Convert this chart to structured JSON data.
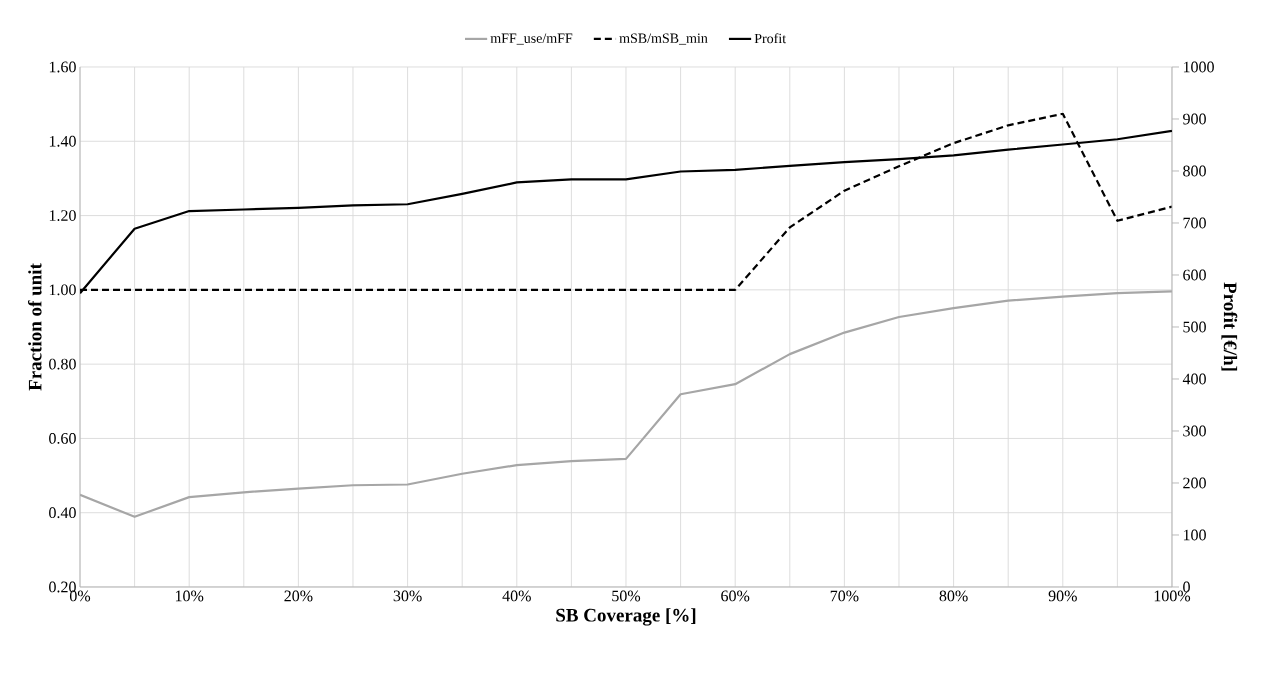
{
  "chart_data": {
    "type": "line",
    "categories": [
      "0%",
      null,
      "10%",
      null,
      "20%",
      null,
      "30%",
      null,
      "40%",
      null,
      "50%",
      null,
      "60%",
      null,
      "70%",
      null,
      "80%",
      null,
      "90%",
      null,
      "100%"
    ],
    "series": [
      {
        "name": "mFF_use/mFF",
        "color": "#a6a6a6",
        "line_style": "solid",
        "values": [
          0.448,
          0.389,
          0.442,
          0.455,
          0.465,
          0.474,
          0.476,
          0.505,
          0.528,
          0.539,
          0.545,
          0.719,
          0.746,
          0.827,
          0.885,
          0.927,
          0.951,
          0.971,
          0.982,
          0.991,
          0.996
        ]
      },
      {
        "name": "mSB/mSB_min",
        "color": "#000000",
        "line_style": "dashed",
        "values": [
          1.0,
          1.0,
          1.0,
          1.0,
          1.0,
          1.0,
          1.0,
          1.0,
          1.0,
          1.0,
          1.0,
          1.0,
          1.0,
          1.168,
          1.267,
          1.333,
          1.395,
          1.443,
          1.474,
          1.186,
          1.224
        ]
      },
      {
        "name": "Profit",
        "color": "#000000",
        "line_style": "solid",
        "axis": "y2",
        "values": [
          565,
          689,
          723,
          726,
          729,
          734,
          736,
          756,
          778,
          784,
          784,
          799,
          802,
          810,
          817,
          823,
          830,
          841,
          851,
          861,
          877
        ]
      }
    ],
    "xlabel": "SB Coverage [%]",
    "ylabel": "Fraction of unit",
    "y2label": "Profit [€/h]",
    "ylim": [
      0.2,
      1.6
    ],
    "yticks": [
      {
        "value": 0.2,
        "label": "0.20"
      },
      {
        "value": 0.4,
        "label": "0.40"
      },
      {
        "value": 0.6,
        "label": "0.60"
      },
      {
        "value": 0.8,
        "label": "0.80"
      },
      {
        "value": 1.0,
        "label": "1.00"
      },
      {
        "value": 1.2,
        "label": "1.20"
      },
      {
        "value": 1.4,
        "label": "1.40"
      },
      {
        "value": 1.6,
        "label": "1.60"
      }
    ],
    "y2lim": [
      0,
      1000
    ],
    "y2ticks": [
      0,
      100,
      200,
      300,
      400,
      500,
      600,
      700,
      800,
      900,
      1000
    ],
    "grid": true,
    "legend": "top"
  }
}
